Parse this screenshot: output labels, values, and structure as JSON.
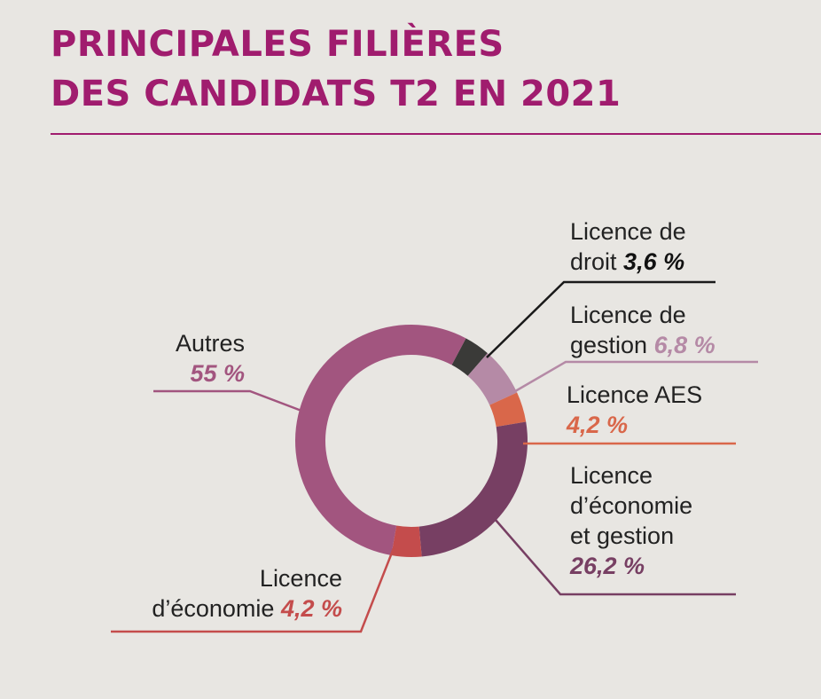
{
  "title": {
    "line1": "PRINCIPALES FILIÈRES",
    "line2": "DES CANDIDATS T2 EN 2021"
  },
  "chart_data": {
    "type": "pie",
    "variant": "donut",
    "title": "PRINCIPALES FILIÈRES DES CANDIDATS T2 EN 2021",
    "slices": [
      {
        "name": "Licence de droit",
        "value": 3.6,
        "label_text_1": "Licence de",
        "label_text_2": "droit",
        "pct_label": "3,6 %",
        "color": "#3a3a38"
      },
      {
        "name": "Licence de gestion",
        "value": 6.8,
        "label_text_1": "Licence de",
        "label_text_2": "gestion",
        "pct_label": "6,8 %",
        "color": "#b58aa6"
      },
      {
        "name": "Licence AES",
        "value": 4.2,
        "label_text_1": "Licence AES",
        "label_text_2": "",
        "pct_label": "4,2 %",
        "color": "#d9674a"
      },
      {
        "name": "Licence d’économie et gestion",
        "value": 26.2,
        "label_text_1": "Licence",
        "label_text_2": "d’économie",
        "label_text_3": "et gestion",
        "pct_label": "26,2 %",
        "color": "#773f63"
      },
      {
        "name": "Licence d’économie",
        "value": 4.2,
        "label_text_1": "Licence",
        "label_text_2": "d’économie",
        "pct_label": "4,2 %",
        "color": "#c44c4c"
      },
      {
        "name": "Autres",
        "value": 55,
        "label_text_1": "Autres",
        "label_text_2": "",
        "pct_label": "55 %",
        "color": "#a2557f"
      }
    ]
  }
}
